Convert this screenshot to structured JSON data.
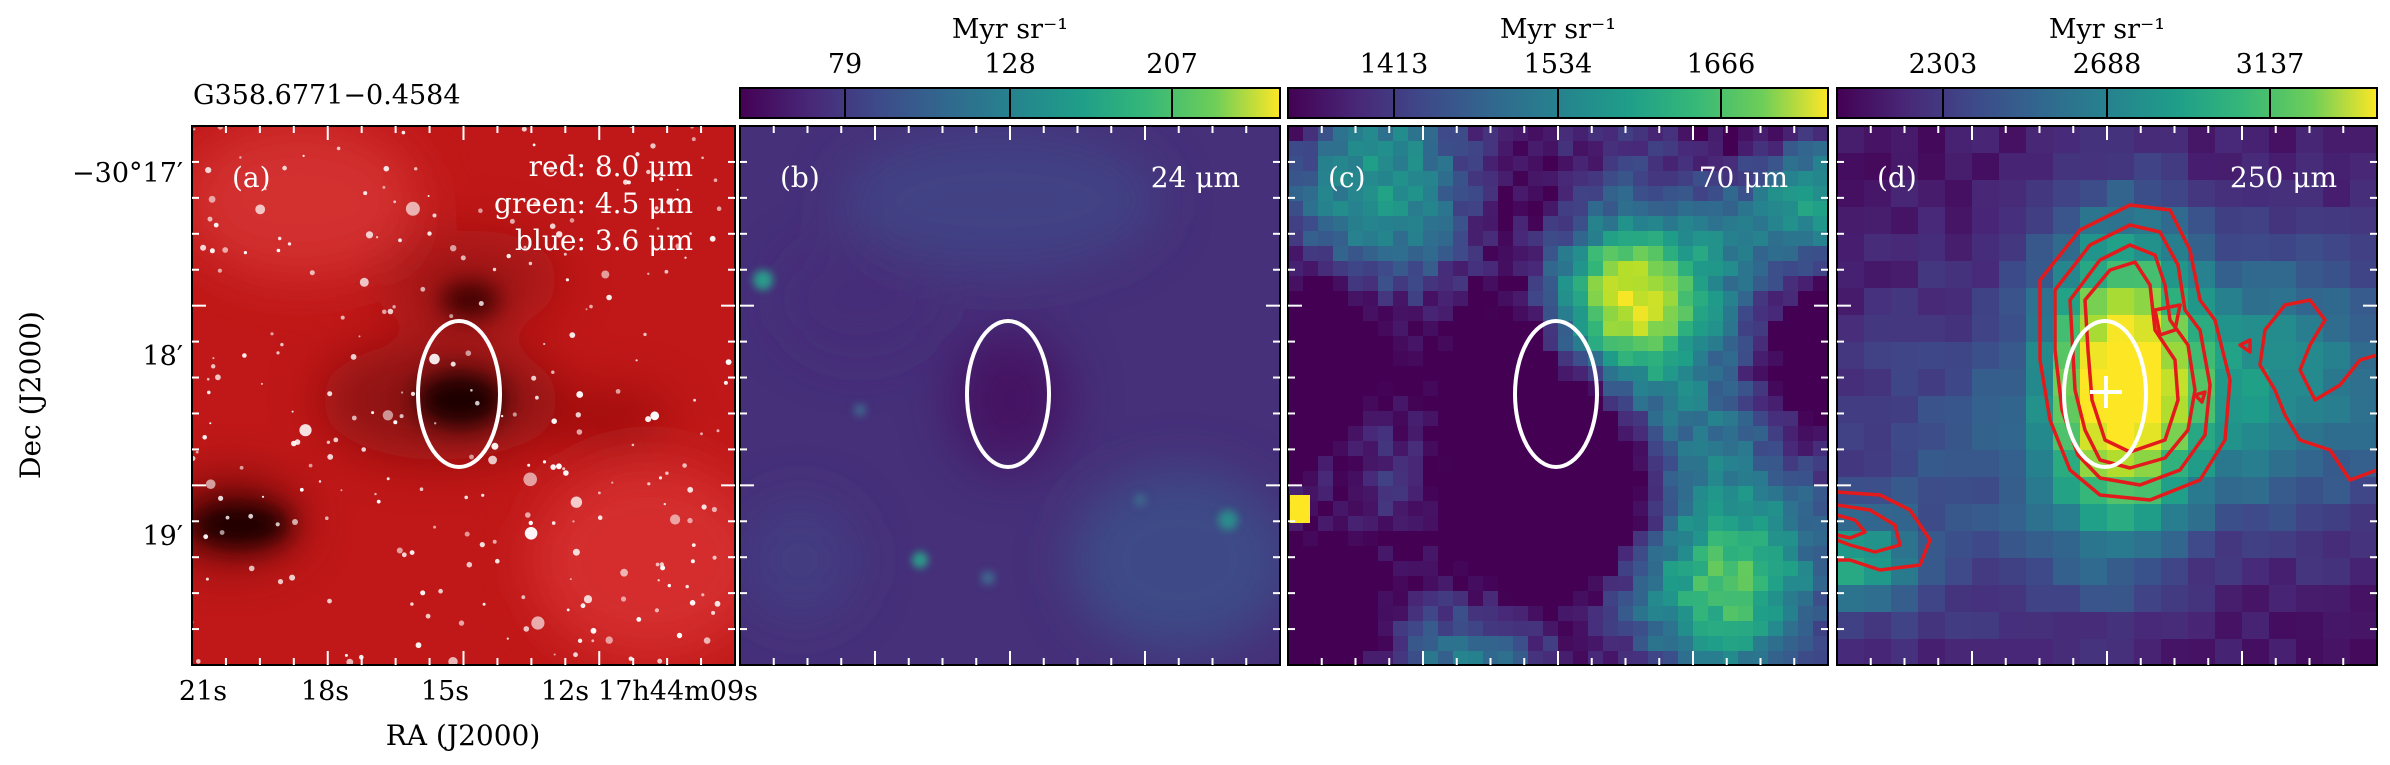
{
  "source_name": "G358.6771−0.4584",
  "axes": {
    "ylabel": "Dec (J2000)",
    "xlabel": "RA (J2000)",
    "yticks": [
      "−30°17′",
      "18′",
      "19′"
    ],
    "xticks": [
      "21s",
      "18s",
      "15s",
      "12s",
      "17h44m09s"
    ]
  },
  "panels": [
    {
      "letter": "(a)",
      "legend": [
        "red: 8.0 μm",
        "green: 4.5 μm",
        "blue: 3.6 μm"
      ]
    },
    {
      "letter": "(b)",
      "band": "24 μm",
      "colorbar": {
        "unit": "Myr sr⁻¹",
        "ticks": [
          "79",
          "128",
          "207"
        ]
      }
    },
    {
      "letter": "(c)",
      "band": "70 μm",
      "colorbar": {
        "unit": "Myr sr⁻¹",
        "ticks": [
          "1413",
          "1534",
          "1666"
        ]
      }
    },
    {
      "letter": "(d)",
      "band": "250 μm",
      "colorbar": {
        "unit": "Myr sr⁻¹",
        "ticks": [
          "2303",
          "2688",
          "3137"
        ]
      }
    }
  ],
  "colors": {
    "viridis_low": "#440154",
    "viridis_mid": "#21918c",
    "viridis_high": "#fde725",
    "ellipse": "#ffffff",
    "contour": "#e31a1c",
    "rgb_background": "#c01818"
  }
}
